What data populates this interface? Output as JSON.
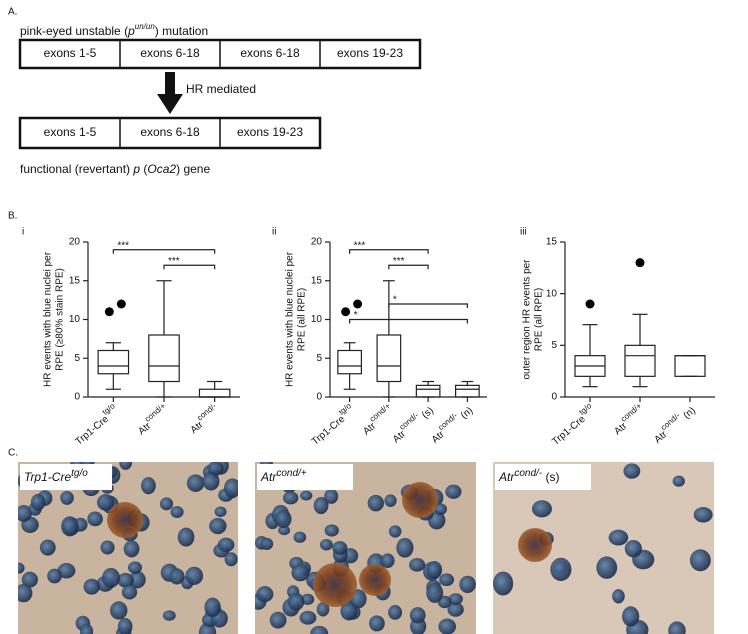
{
  "panel_a": {
    "label": "A.",
    "title_parts": [
      "pink-eyed unstable (",
      "p",
      "un/un",
      ") mutation"
    ],
    "top_exons": [
      "exons 1-5",
      "exons 6-18",
      "exons 6-18",
      "exons 19-23"
    ],
    "arrow_label": "HR mediated",
    "bottom_exons": [
      "exons 1-5",
      "exons 6-18",
      "exons 19-23"
    ],
    "caption_parts": [
      "functional (revertant) ",
      "p",
      " (",
      "Oca2",
      ") gene"
    ]
  },
  "panel_b": {
    "label": "B."
  },
  "chart_data": [
    {
      "type": "box",
      "panel": "i",
      "ylabel": [
        "HR events with blue nuclei per",
        "RPE (≥80% stain RPE)"
      ],
      "ylim": [
        0,
        20
      ],
      "yticks": [
        0,
        5,
        10,
        15,
        20
      ],
      "categories": [
        [
          "Trp1-Cre",
          "tg/o"
        ],
        [
          "Atr",
          "cond/+"
        ],
        [
          "Atr",
          "cond/-"
        ]
      ],
      "boxes": [
        {
          "min": 1,
          "q1": 3,
          "median": 4,
          "q3": 6,
          "max": 7,
          "outliers": [
            11,
            12
          ]
        },
        {
          "min": 0,
          "q1": 2,
          "median": 4,
          "q3": 8,
          "max": 15,
          "outliers": []
        },
        {
          "min": 0,
          "q1": 0,
          "median": 0,
          "q3": 1,
          "max": 2,
          "outliers": []
        }
      ],
      "significance": [
        {
          "from": 0,
          "to": 2,
          "y": 19,
          "label": "***"
        },
        {
          "from": 1,
          "to": 2,
          "y": 17,
          "label": "***"
        }
      ]
    },
    {
      "type": "box",
      "panel": "ii",
      "ylabel": [
        "HR events with blue nuclei per",
        "RPE (all RPE)"
      ],
      "ylim": [
        0,
        20
      ],
      "yticks": [
        0,
        5,
        10,
        15,
        20
      ],
      "categories": [
        [
          "Trp1-Cre",
          "tg/o"
        ],
        [
          "Atr",
          "cond/+"
        ],
        [
          "Atr",
          "cond/-",
          " (s)"
        ],
        [
          "Atr",
          "cond/-",
          " (n)"
        ]
      ],
      "boxes": [
        {
          "min": 1,
          "q1": 3,
          "median": 4,
          "q3": 6,
          "max": 7,
          "outliers": [
            11,
            12
          ]
        },
        {
          "min": 0,
          "q1": 2,
          "median": 4,
          "q3": 8,
          "max": 15,
          "outliers": []
        },
        {
          "min": 0,
          "q1": 0,
          "median": 1,
          "q3": 1.5,
          "max": 2,
          "outliers": []
        },
        {
          "min": 0,
          "q1": 0,
          "median": 1,
          "q3": 1.5,
          "max": 2,
          "outliers": []
        }
      ],
      "significance": [
        {
          "from": 0,
          "to": 2,
          "y": 19,
          "label": "***"
        },
        {
          "from": 1,
          "to": 2,
          "y": 17,
          "label": "***"
        },
        {
          "from": 1,
          "to": 3,
          "y": 12,
          "label": "*"
        },
        {
          "from": 0,
          "to": 3,
          "y": 10,
          "label": "*"
        }
      ]
    },
    {
      "type": "box",
      "panel": "iii",
      "ylabel": [
        "outer region HR events per",
        "RPE (all RPE)"
      ],
      "ylim": [
        0,
        15
      ],
      "yticks": [
        0,
        5,
        10,
        15
      ],
      "categories": [
        [
          "Trp1-Cre",
          "tg/o"
        ],
        [
          "Atr",
          "cond/+"
        ],
        [
          "Atr",
          "cond/-",
          " (n)"
        ]
      ],
      "boxes": [
        {
          "min": 1,
          "q1": 2,
          "median": 3,
          "q3": 4,
          "max": 7,
          "outliers": [
            9
          ]
        },
        {
          "min": 1,
          "q1": 2,
          "median": 4,
          "q3": 5,
          "max": 8,
          "outliers": [
            13
          ]
        },
        {
          "min": 2,
          "q1": 2,
          "median": 4,
          "q3": 4,
          "max": 4,
          "outliers": []
        }
      ],
      "significance": []
    }
  ],
  "panel_c": {
    "label": "C.",
    "images": [
      {
        "label_parts": [
          "Trp1-Cre",
          "tg/o"
        ]
      },
      {
        "label_parts": [
          "Atr",
          "cond/+"
        ]
      },
      {
        "label_parts": [
          "Atr",
          "cond/-",
          " (s)"
        ]
      }
    ]
  }
}
